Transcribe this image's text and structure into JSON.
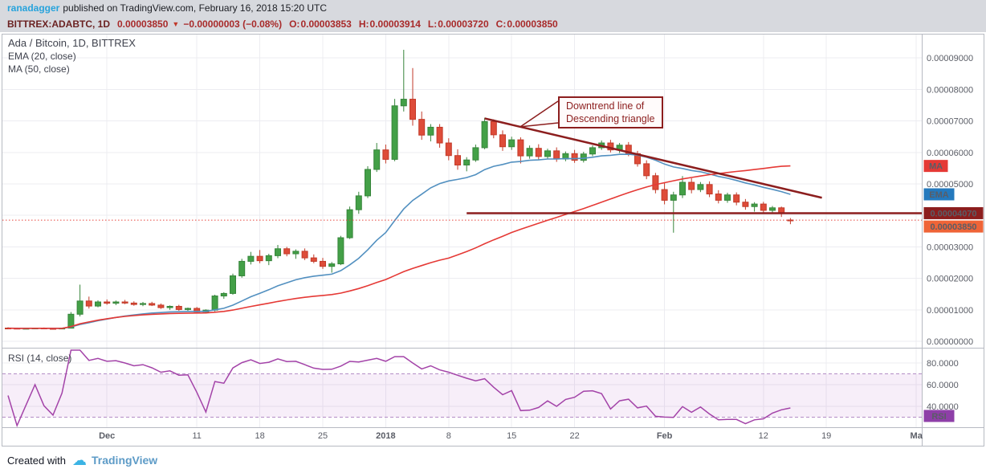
{
  "meta": {
    "attribution": {
      "username": "ranadagger",
      "text": "published on TradingView.com, February 16, 2018 15:20 UTC"
    },
    "footer": {
      "created_with": "Created with",
      "logo_glyph": "☁",
      "brand": "TradingView"
    }
  },
  "header": {
    "symbol": "BITTREX:ADABTC, 1D",
    "last": "0.00003850",
    "direction": "▼",
    "change": "−0.00000003 (−0.08%)",
    "ohlc": [
      {
        "label": "O:",
        "value": "0.00003853"
      },
      {
        "label": "H:",
        "value": "0.00003914"
      },
      {
        "label": "L:",
        "value": "0.00003720"
      },
      {
        "label": "C:",
        "value": "0.00003850"
      }
    ]
  },
  "legend": {
    "main": "Ada / Bitcoin, 1D, BITTREX",
    "ema": "EMA (20, close)",
    "ma": "MA (50, close)",
    "rsi": "RSI (14, close)"
  },
  "annotation": {
    "line1": "Downtrend line of",
    "line2": "Descending triangle"
  },
  "chart_data": {
    "type": "candlestick",
    "title": "Ada / Bitcoin, 1D, BITTREX",
    "price_unit": "BTC, candle values expressed in 1e-8 BTC (satoshi)",
    "date_range": "Nov 20 2017 – Feb 16 2018, daily bars",
    "y_ticks": [
      9000,
      8000,
      7000,
      6000,
      5000,
      4000,
      3000,
      2000,
      1000,
      0
    ],
    "x_ticks": [
      {
        "label": "Dec",
        "i": 11,
        "bold": true
      },
      {
        "label": "11",
        "i": 21
      },
      {
        "label": "18",
        "i": 28
      },
      {
        "label": "25",
        "i": 35
      },
      {
        "label": "2018",
        "i": 42,
        "bold": true
      },
      {
        "label": "8",
        "i": 49
      },
      {
        "label": "15",
        "i": 56
      },
      {
        "label": "22",
        "i": 63
      },
      {
        "label": "Feb",
        "i": 73,
        "bold": true
      },
      {
        "label": "12",
        "i": 84
      },
      {
        "label": "19",
        "i": 91
      },
      {
        "label": "Ma",
        "i": 101,
        "bold": true
      }
    ],
    "candles": [
      [
        420,
        445,
        400,
        415
      ],
      [
        415,
        435,
        395,
        405
      ],
      [
        405,
        425,
        388,
        412
      ],
      [
        412,
        430,
        390,
        420
      ],
      [
        420,
        438,
        398,
        408
      ],
      [
        408,
        428,
        385,
        398
      ],
      [
        398,
        425,
        388,
        418
      ],
      [
        418,
        930,
        410,
        860
      ],
      [
        860,
        1800,
        790,
        1280
      ],
      [
        1280,
        1420,
        1040,
        1120
      ],
      [
        1120,
        1300,
        1080,
        1250
      ],
      [
        1250,
        1330,
        1160,
        1210
      ],
      [
        1210,
        1295,
        1150,
        1250
      ],
      [
        1250,
        1315,
        1180,
        1215
      ],
      [
        1215,
        1270,
        1130,
        1170
      ],
      [
        1170,
        1250,
        1115,
        1200
      ],
      [
        1200,
        1255,
        1120,
        1150
      ],
      [
        1150,
        1200,
        1030,
        1070
      ],
      [
        1070,
        1140,
        1000,
        1110
      ],
      [
        1110,
        1160,
        970,
        1010
      ],
      [
        1010,
        1070,
        930,
        1045
      ],
      [
        1045,
        1090,
        900,
        935
      ],
      [
        935,
        1015,
        880,
        990
      ],
      [
        990,
        1480,
        950,
        1440
      ],
      [
        1440,
        1560,
        1350,
        1520
      ],
      [
        1520,
        2150,
        1480,
        2080
      ],
      [
        2080,
        2620,
        2020,
        2540
      ],
      [
        2540,
        2840,
        2440,
        2700
      ],
      [
        2700,
        2900,
        2480,
        2560
      ],
      [
        2560,
        2780,
        2420,
        2720
      ],
      [
        2720,
        3060,
        2640,
        2940
      ],
      [
        2940,
        3000,
        2700,
        2780
      ],
      [
        2780,
        2920,
        2620,
        2860
      ],
      [
        2860,
        2950,
        2580,
        2650
      ],
      [
        2650,
        2760,
        2480,
        2540
      ],
      [
        2540,
        2650,
        2300,
        2380
      ],
      [
        2380,
        2520,
        2180,
        2460
      ],
      [
        2460,
        3350,
        2420,
        3290
      ],
      [
        3290,
        4280,
        3250,
        4180
      ],
      [
        4180,
        4750,
        4050,
        4620
      ],
      [
        4620,
        5560,
        4550,
        5460
      ],
      [
        5460,
        6300,
        5380,
        6080
      ],
      [
        6080,
        6250,
        5650,
        5780
      ],
      [
        5780,
        7700,
        5720,
        7480
      ],
      [
        7480,
        9260,
        7300,
        7690
      ],
      [
        7690,
        8680,
        6850,
        7050
      ],
      [
        7050,
        7300,
        6400,
        6550
      ],
      [
        6550,
        6900,
        6350,
        6800
      ],
      [
        6800,
        6900,
        6150,
        6300
      ],
      [
        6300,
        6450,
        5750,
        5900
      ],
      [
        5900,
        6100,
        5450,
        5600
      ],
      [
        5600,
        5850,
        5400,
        5760
      ],
      [
        5760,
        6250,
        5700,
        6150
      ],
      [
        6150,
        7100,
        6100,
        6980
      ],
      [
        6980,
        7050,
        6450,
        6560
      ],
      [
        6560,
        6700,
        6050,
        6180
      ],
      [
        6180,
        6500,
        6080,
        6400
      ],
      [
        6400,
        6480,
        5650,
        5890
      ],
      [
        5890,
        6220,
        5800,
        6130
      ],
      [
        6130,
        6260,
        5780,
        5870
      ],
      [
        5870,
        6120,
        5800,
        6050
      ],
      [
        6050,
        6160,
        5700,
        5790
      ],
      [
        5790,
        6030,
        5720,
        5960
      ],
      [
        5960,
        6080,
        5670,
        5750
      ],
      [
        5750,
        6020,
        5680,
        5950
      ],
      [
        5950,
        6220,
        5880,
        6150
      ],
      [
        6150,
        6380,
        6080,
        6300
      ],
      [
        6300,
        6400,
        6000,
        6080
      ],
      [
        6080,
        6300,
        5980,
        6230
      ],
      [
        6230,
        6330,
        5880,
        5960
      ],
      [
        5960,
        6050,
        5550,
        5640
      ],
      [
        5640,
        5750,
        5150,
        5260
      ],
      [
        5260,
        5350,
        4700,
        4820
      ],
      [
        4820,
        5050,
        4350,
        4480
      ],
      [
        4480,
        4750,
        3450,
        4650
      ],
      [
        4650,
        5250,
        4550,
        5050
      ],
      [
        5050,
        5180,
        4700,
        4820
      ],
      [
        4820,
        5060,
        4740,
        4980
      ],
      [
        4980,
        5080,
        4580,
        4680
      ],
      [
        4680,
        4800,
        4380,
        4480
      ],
      [
        4480,
        4720,
        4400,
        4650
      ],
      [
        4650,
        4730,
        4320,
        4420
      ],
      [
        4420,
        4520,
        4180,
        4280
      ],
      [
        4280,
        4420,
        4120,
        4360
      ],
      [
        4360,
        4430,
        4080,
        4160
      ],
      [
        4160,
        4300,
        4060,
        4240
      ],
      [
        4240,
        4280,
        3950,
        4060
      ],
      [
        3853,
        3914,
        3720,
        3850
      ]
    ],
    "overlays": [
      {
        "name": "EMA (20, close)",
        "method": "ema",
        "length": 20,
        "color": "#5290c0"
      },
      {
        "name": "MA (50, close)",
        "method": "sma",
        "length": 50,
        "color": "#e53935"
      }
    ],
    "drawings": {
      "downtrend": {
        "i1": 53,
        "p1": 7080,
        "i2": 90.5,
        "p2": 4560,
        "color": "#8c1e1e"
      },
      "support": {
        "price": 4070,
        "i1": 51,
        "color": "#8c1e1e"
      },
      "last_price_line": {
        "price": 3850,
        "style": "dotted",
        "color": "#e8453c"
      }
    },
    "rsi": {
      "length": 14,
      "color": "#a343a8",
      "band": [
        30,
        70
      ],
      "band_fill": "rgba(156,39,176,0.08)",
      "band_line_color": "#b48ec6",
      "ticks": [
        80,
        60,
        40
      ],
      "badge": {
        "text": "RSI",
        "bg": "#8e3fa8"
      }
    },
    "axis_badges": [
      {
        "text": "MA",
        "bg": "#e53935",
        "anchor": "ma_end",
        "small": true
      },
      {
        "text": "EMA",
        "bg": "#2479bd",
        "anchor": "ema_end",
        "small": true
      },
      {
        "text": "0.00004070",
        "bg": "#8c1e1e",
        "price": 4070,
        "dy": 0
      },
      {
        "text": "0.00003850",
        "bg": "#ef6437",
        "price": 3850,
        "dy": 8
      }
    ],
    "colors": {
      "up": "#43a047",
      "up_border": "#37853b",
      "down": "#de4c39",
      "down_border": "#c23a29",
      "grid": "#ececf1",
      "axis_text": "#5a5d66",
      "border": "#b7bac2"
    }
  }
}
